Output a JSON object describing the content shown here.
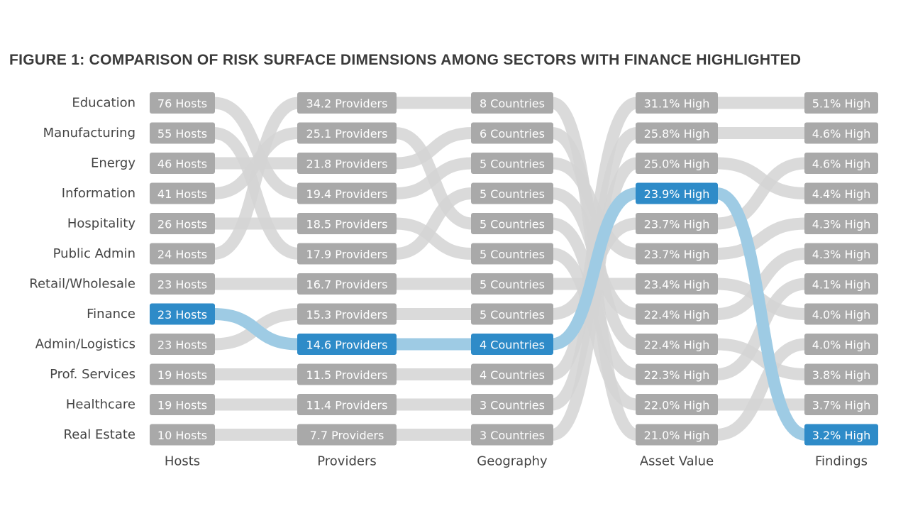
{
  "chart_data": {
    "type": "slopegraph",
    "title": "FIGURE 1: COMPARISON OF RISK SURFACE DIMENSIONS AMONG SECTORS WITH FINANCE HIGHLIGHTED",
    "highlight": "Finance",
    "colors": {
      "gray_box": "#a9a9a9",
      "gray_link": "#d4d4d4",
      "blue_box": "#2e8bc8",
      "blue_link": "#9ecbe4",
      "text": "#444444"
    },
    "sectors": [
      "Education",
      "Manufacturing",
      "Energy",
      "Information",
      "Hospitality",
      "Public Admin",
      "Retail/Wholesale",
      "Finance",
      "Admin/Logistics",
      "Prof. Services",
      "Healthcare",
      "Real Estate"
    ],
    "columns": [
      {
        "name": "Hosts",
        "labels": [
          "76 Hosts",
          "55 Hosts",
          "46 Hosts",
          "41 Hosts",
          "26 Hosts",
          "24 Hosts",
          "23 Hosts",
          "23 Hosts",
          "23 Hosts",
          "19 Hosts",
          "19 Hosts",
          "10 Hosts"
        ],
        "rank_sector": [
          "Education",
          "Manufacturing",
          "Energy",
          "Information",
          "Hospitality",
          "Public Admin",
          "Retail/Wholesale",
          "Finance",
          "Admin/Logistics",
          "Prof. Services",
          "Healthcare",
          "Real Estate"
        ]
      },
      {
        "name": "Providers",
        "labels": [
          "34.2 Providers",
          "25.1 Providers",
          "21.8 Providers",
          "19.4 Providers",
          "18.5 Providers",
          "17.9 Providers",
          "16.7 Providers",
          "15.3 Providers",
          "14.6 Providers",
          "11.5 Providers",
          "11.4 Providers",
          "7.7 Providers"
        ],
        "rank_sector": [
          "Public Admin",
          "Information",
          "Energy",
          "Education",
          "Hospitality",
          "Manufacturing",
          "Retail/Wholesale",
          "Admin/Logistics",
          "Finance",
          "Prof. Services",
          "Healthcare",
          "Real Estate"
        ]
      },
      {
        "name": "Geography",
        "labels": [
          "8 Countries",
          "6 Countries",
          "5 Countries",
          "5 Countries",
          "5 Countries",
          "5 Countries",
          "5 Countries",
          "5 Countries",
          "4 Countries",
          "4 Countries",
          "3 Countries",
          "3 Countries"
        ],
        "rank_sector": [
          "Public Admin",
          "Energy",
          "Education",
          "Manufacturing",
          "Information",
          "Hospitality",
          "Retail/Wholesale",
          "Admin/Logistics",
          "Finance",
          "Prof. Services",
          "Healthcare",
          "Real Estate"
        ]
      },
      {
        "name": "Asset Value",
        "labels": [
          "31.1% High",
          "25.8% High",
          "25.0% High",
          "23.9% High",
          "23.7% High",
          "23.7% High",
          "23.4% High",
          "22.4% High",
          "22.4% High",
          "22.3% High",
          "22.0% High",
          "21.0% High"
        ],
        "rank_sector": [
          "Prof. Services",
          "Healthcare",
          "Real Estate",
          "Finance",
          "Admin/Logistics",
          "Education",
          "Retail/Wholesale",
          "Manufacturing",
          "Energy",
          "Information",
          "Hospitality",
          "Public Admin"
        ]
      },
      {
        "name": "Findings",
        "labels": [
          "5.1% High",
          "4.6% High",
          "4.6% High",
          "4.4% High",
          "4.3% High",
          "4.3% High",
          "4.1% High",
          "4.0% High",
          "4.0% High",
          "3.8% High",
          "3.7% High",
          "3.2% High"
        ],
        "rank_sector": [
          "Prof. Services",
          "Healthcare",
          "Admin/Logistics",
          "Real Estate",
          "Education",
          "Manufacturing",
          "Information",
          "Retail/Wholesale",
          "Public Admin",
          "Energy",
          "Hospitality",
          "Finance"
        ]
      }
    ]
  }
}
